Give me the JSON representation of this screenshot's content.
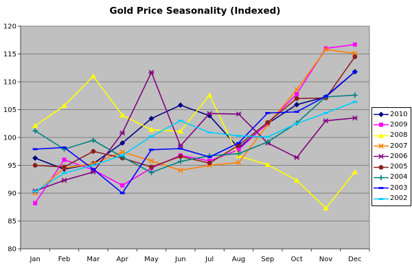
{
  "chart_data": {
    "type": "line",
    "title": "Gold Price Seasonality (Indexed)",
    "categories": [
      "Jan",
      "Feb",
      "Mar",
      "Apr",
      "May",
      "Jun",
      "Jul",
      "Aug",
      "Sep",
      "Oct",
      "Nov",
      "Dec"
    ],
    "xlabel": "",
    "ylabel": "",
    "ylim": [
      80,
      120
    ],
    "ytick_step": 5,
    "yticks": [
      120,
      115,
      110,
      105,
      100,
      95,
      90,
      85,
      80
    ],
    "grid": true,
    "plot_bg_color": "#c0c0c0",
    "gridline_color": "#808080",
    "axis_color": "#404040",
    "legend_position": "right",
    "legend_bg_color": "#ffffff",
    "series": [
      {
        "name": "2010",
        "color": "#000080",
        "marker": "diamond",
        "values": [
          96.3,
          94.3,
          95.3,
          99.0,
          103.4,
          105.8,
          103.9,
          98.1,
          102.5,
          105.9,
          107.3,
          111.8
        ]
      },
      {
        "name": "2009",
        "color": "#ff00ff",
        "marker": "square",
        "values": [
          88.2,
          96.0,
          94.2,
          91.4,
          94.5,
          96.8,
          95.8,
          97.8,
          102.6,
          107.8,
          116.0,
          116.7
        ]
      },
      {
        "name": "2008",
        "color": "#ffff00",
        "marker": "triangle",
        "values": [
          102.1,
          105.7,
          111.0,
          104.0,
          101.4,
          101.1,
          107.6,
          96.7,
          95.1,
          92.3,
          87.3,
          93.8
        ]
      },
      {
        "name": "2007",
        "color": "#ff8000",
        "marker": "x",
        "values": [
          90.0,
          94.5,
          95.3,
          97.4,
          95.8,
          94.1,
          95.0,
          95.5,
          102.3,
          108.6,
          115.8,
          115.1
        ]
      },
      {
        "name": "2006",
        "color": "#800080",
        "marker": "asterisk",
        "values": [
          90.4,
          92.3,
          93.8,
          100.8,
          111.7,
          98.5,
          104.3,
          104.2,
          99.0,
          96.4,
          103.0,
          103.5
        ]
      },
      {
        "name": "2005",
        "color": "#8b2020",
        "marker": "circle",
        "values": [
          95.0,
          94.7,
          97.5,
          96.3,
          94.7,
          96.6,
          95.4,
          98.6,
          102.7,
          107.0,
          107.1,
          114.5
        ]
      },
      {
        "name": "2004",
        "color": "#008080",
        "marker": "plus",
        "values": [
          101.2,
          97.9,
          99.5,
          96.5,
          93.7,
          95.7,
          96.7,
          97.1,
          99.2,
          102.6,
          107.3,
          107.6
        ]
      },
      {
        "name": "2003",
        "color": "#0000ff",
        "marker": "dash",
        "values": [
          97.9,
          98.2,
          94.3,
          90.0,
          97.8,
          98.0,
          96.5,
          99.0,
          104.4,
          104.6,
          107.4,
          111.8
        ]
      },
      {
        "name": "2002",
        "color": "#00ccff",
        "marker": "dash",
        "values": [
          90.3,
          93.6,
          95.0,
          96.8,
          100.2,
          103.0,
          100.9,
          100.3,
          100.1,
          102.5,
          104.4,
          106.4
        ]
      }
    ]
  }
}
